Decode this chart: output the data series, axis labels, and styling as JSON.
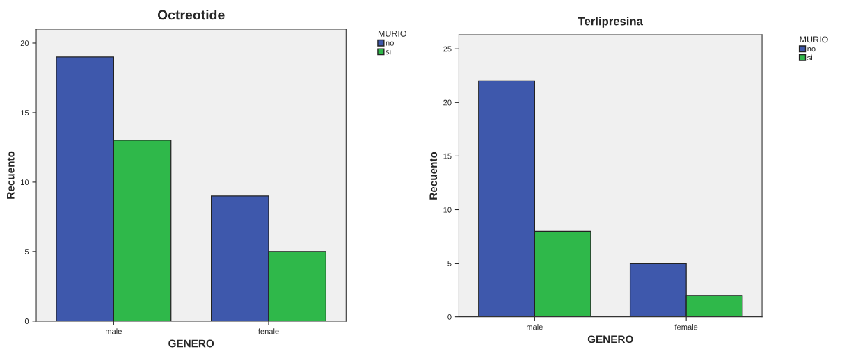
{
  "chart_data": [
    {
      "type": "bar",
      "title": "Octreotide",
      "xlabel": "GENERO",
      "ylabel": "Recuento",
      "legend_title": "MURIO",
      "legend": "top right",
      "categories": [
        "male",
        "fenale"
      ],
      "ylim": [
        0,
        21
      ],
      "yticks": [
        0,
        5,
        10,
        15,
        20
      ],
      "grid": false,
      "series": [
        {
          "name": "no",
          "color": "#3e58ac",
          "values": [
            19,
            9
          ]
        },
        {
          "name": "si",
          "color": "#2fb84a",
          "values": [
            13,
            5
          ]
        }
      ]
    },
    {
      "type": "bar",
      "title": "Terlipresina",
      "xlabel": "GENERO",
      "ylabel": "Recuento",
      "legend_title": "MURIO",
      "legend": "top right",
      "categories": [
        "male",
        "female"
      ],
      "ylim": [
        0,
        26.3
      ],
      "yticks": [
        0,
        5,
        10,
        15,
        20,
        25
      ],
      "grid": false,
      "series": [
        {
          "name": "no",
          "color": "#3e58ac",
          "values": [
            22,
            5
          ]
        },
        {
          "name": "si",
          "color": "#2fb84a",
          "values": [
            8,
            2
          ]
        }
      ]
    }
  ]
}
